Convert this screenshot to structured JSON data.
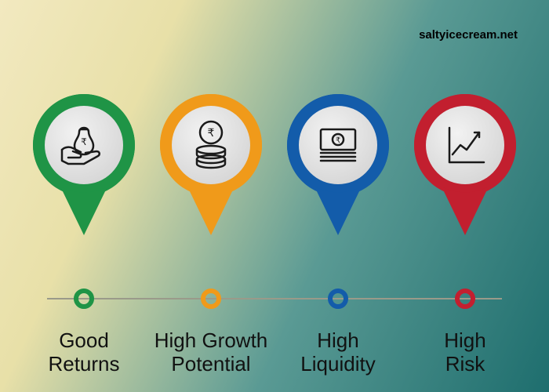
{
  "watermark": "saltyicecream.net",
  "background_gradient": [
    "#f2e9c0",
    "#e8e0a8",
    "#5a9a94",
    "#1e6e6e"
  ],
  "timeline_color": "#9a9a8a",
  "pin_inner_fill": "#d6d6d6",
  "pin_icon_stroke": "#1a1a1a",
  "label_color": "#111111",
  "label_fontsize": 26,
  "items": [
    {
      "id": "good-returns",
      "color": "#1f9446",
      "icon": "hand-money-bag",
      "label_line1": "Good",
      "label_line2": "Returns"
    },
    {
      "id": "high-growth",
      "color": "#f09a1a",
      "icon": "coin-stack",
      "label_line1": "High Growth",
      "label_line2": "Potential"
    },
    {
      "id": "high-liquidity",
      "color": "#135caa",
      "icon": "cash-stack",
      "label_line1": "High",
      "label_line2": "Liquidity"
    },
    {
      "id": "high-risk",
      "color": "#c21f2f",
      "icon": "line-chart",
      "label_line1": "High",
      "label_line2": "Risk"
    }
  ]
}
